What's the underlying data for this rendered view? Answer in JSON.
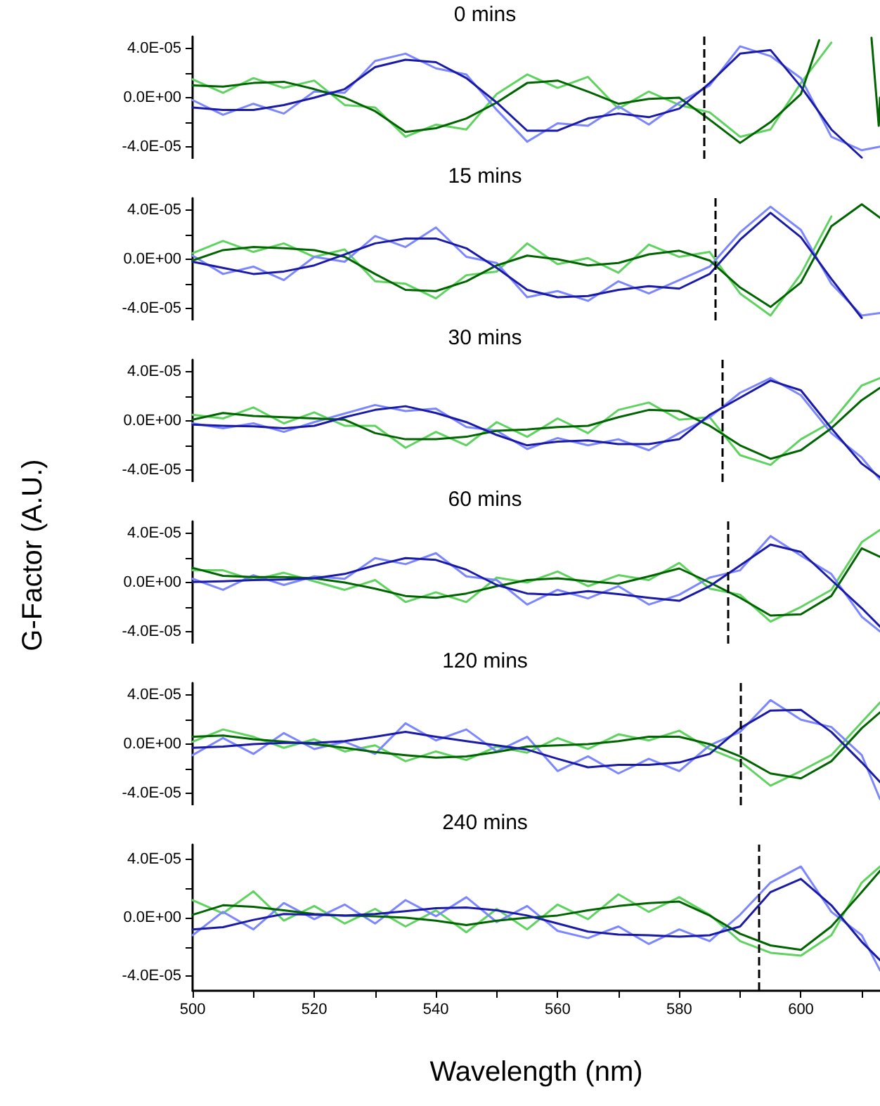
{
  "chart_data": [
    {
      "type": "line",
      "title": "0 mins",
      "tick_labels": "y",
      "xlim": [
        500,
        613
      ],
      "ylim": [
        -5e-05,
        5e-05
      ],
      "yticks": [
        {
          "value": -4e-05,
          "label": "-4.0E-05"
        },
        {
          "value": -2e-05,
          "label": null
        },
        {
          "value": 0,
          "label": "0.0E+00"
        },
        {
          "value": 2e-05,
          "label": null
        },
        {
          "value": 4e-05,
          "label": "4.0E-05"
        }
      ],
      "x": [
        500,
        505,
        510,
        515,
        520,
        525,
        530,
        535,
        540,
        545,
        550,
        555,
        560,
        565,
        570,
        575,
        580,
        585,
        590,
        595,
        600,
        605,
        610,
        613
      ],
      "ref_lines": [
        {
          "axis": "x",
          "value": 584,
          "color": "#000000",
          "line_style": "dashed"
        }
      ],
      "series": [
        {
          "color": "#5fd35f",
          "values": [
            1.5e-05,
            4e-06,
            1.6e-05,
            8e-06,
            1.4e-05,
            -6e-06,
            -8e-06,
            -3.2e-05,
            -2.2e-05,
            -2.6e-05,
            3e-06,
            1.9e-05,
            8e-06,
            1.7e-05,
            -9e-06,
            5e-06,
            -6e-06,
            -1.2e-05,
            -3.2e-05,
            -2.6e-05,
            1.2e-05,
            4.5e-05,
            null,
            null
          ]
        },
        {
          "color": "#7b86ff",
          "values": [
            -2e-06,
            -1.4e-05,
            -5e-06,
            -1.3e-05,
            5e-06,
            4e-06,
            3e-05,
            3.6e-05,
            2.4e-05,
            1.9e-05,
            -1e-05,
            -3.6e-05,
            -2.1e-05,
            -2.3e-05,
            -7e-06,
            -2.2e-05,
            -4e-06,
            1e-05,
            4.2e-05,
            3.4e-05,
            1.6e-05,
            -3.2e-05,
            -4.3e-05,
            -4e-05
          ]
        },
        {
          "color": "#006400",
          "x": [
            500,
            505,
            510,
            515,
            520,
            525,
            530,
            535,
            540,
            545,
            550,
            555,
            560,
            565,
            570,
            575,
            580,
            585,
            590,
            595,
            600,
            603,
            607,
            611.6,
            612.8,
            613
          ],
          "values": [
            1e-05,
            9e-06,
            1.2e-05,
            1.3e-05,
            7e-06,
            0,
            -1.1e-05,
            -2.8e-05,
            -2.5e-05,
            -1.7e-05,
            -4e-06,
            1.2e-05,
            1.4e-05,
            5e-06,
            -5e-06,
            -1e-06,
            0,
            -1.8e-05,
            -3.7e-05,
            -2e-05,
            3e-06,
            4.7e-05,
            null,
            4.9e-05,
            -2.3e-05,
            0
          ]
        },
        {
          "color": "#1a1aa8",
          "values": [
            -8e-06,
            -1e-05,
            -1e-05,
            -6e-06,
            0,
            7e-06,
            2.5e-05,
            3.1e-05,
            2.9e-05,
            1.6e-05,
            -4e-06,
            -2.7e-05,
            -2.7e-05,
            -1.7e-05,
            -1.3e-05,
            -1.6e-05,
            -9e-06,
            1.2e-05,
            3.6e-05,
            3.9e-05,
            9e-06,
            -2.6e-05,
            -4.9e-05,
            null
          ]
        }
      ]
    },
    {
      "type": "line",
      "title": "15 mins",
      "tick_labels": "y",
      "xlim": [
        500,
        613
      ],
      "ylim": [
        -5e-05,
        5e-05
      ],
      "yticks": [
        {
          "value": -4e-05,
          "label": "-4.0E-05"
        },
        {
          "value": -2e-05,
          "label": null
        },
        {
          "value": 0,
          "label": "0.0E+00"
        },
        {
          "value": 2e-05,
          "label": null
        },
        {
          "value": 4e-05,
          "label": "4.0E-05"
        }
      ],
      "x": [
        500,
        505,
        510,
        515,
        520,
        525,
        530,
        535,
        540,
        545,
        550,
        555,
        560,
        565,
        570,
        575,
        580,
        585,
        590,
        595,
        600,
        605,
        610,
        613
      ],
      "ref_lines": [
        {
          "axis": "x",
          "value": 586,
          "color": "#000000",
          "line_style": "dashed"
        }
      ],
      "series": [
        {
          "color": "#5fd35f",
          "values": [
            5e-06,
            1.5e-05,
            6e-06,
            1.3e-05,
            2e-06,
            8e-06,
            -1.8e-05,
            -2e-05,
            -3.2e-05,
            -1.3e-05,
            -1e-05,
            1.3e-05,
            -4e-06,
            1e-06,
            -1.1e-05,
            1.2e-05,
            2e-06,
            6e-06,
            -2.8e-05,
            -4.6e-05,
            -1.2e-05,
            3.5e-05,
            null,
            null
          ]
        },
        {
          "color": "#7b86ff",
          "values": [
            3e-06,
            -1.2e-05,
            -6e-06,
            -1.7e-05,
            2e-06,
            -2e-06,
            1.9e-05,
            1e-05,
            2.6e-05,
            2e-06,
            -3e-06,
            -3.1e-05,
            -2.6e-05,
            -3.4e-05,
            -1.8e-05,
            -2.8e-05,
            -1.7e-05,
            -6e-06,
            2.2e-05,
            4.3e-05,
            2.4e-05,
            -2e-05,
            -4.6e-05,
            -4.4e-05
          ]
        },
        {
          "color": "#006400",
          "values": [
            -1e-06,
            7.5e-06,
            1e-05,
            9e-06,
            7.5e-06,
            2e-06,
            -1.2e-05,
            -2.5e-05,
            -2.6e-05,
            -1.8e-05,
            -5e-06,
            3e-06,
            0,
            -5e-06,
            -3e-06,
            4e-06,
            7e-06,
            -1e-06,
            -2.3e-05,
            -3.9e-05,
            -1.9e-05,
            2.7e-05,
            4.5e-05,
            3.4e-05
          ]
        },
        {
          "color": "#1a1aa8",
          "values": [
            -2e-06,
            -7e-06,
            -1.2e-05,
            -1e-05,
            -5e-06,
            4e-06,
            1.3e-05,
            1.7e-05,
            1.7e-05,
            9e-06,
            -7e-06,
            -2.5e-05,
            -3.1e-05,
            -3e-05,
            -2.5e-05,
            -2.2e-05,
            -2.4e-05,
            -1.2e-05,
            1.6e-05,
            3.8e-05,
            1.8e-05,
            -1.6e-05,
            -4.8e-05,
            null
          ]
        }
      ]
    },
    {
      "type": "line",
      "title": "30 mins",
      "tick_labels": "y",
      "xlim": [
        500,
        613
      ],
      "ylim": [
        -5e-05,
        5e-05
      ],
      "yticks": [
        {
          "value": -4e-05,
          "label": "-4.0E-05"
        },
        {
          "value": -2e-05,
          "label": null
        },
        {
          "value": 0,
          "label": "0.0E+00"
        },
        {
          "value": 2e-05,
          "label": null
        },
        {
          "value": 4e-05,
          "label": "4.0E-05"
        }
      ],
      "x": [
        500,
        505,
        510,
        515,
        520,
        525,
        530,
        535,
        540,
        545,
        550,
        555,
        560,
        565,
        570,
        575,
        580,
        585,
        590,
        595,
        600,
        605,
        610,
        613
      ],
      "ref_lines": [
        {
          "axis": "x",
          "value": 587,
          "color": "#000000",
          "line_style": "dashed"
        }
      ],
      "series": [
        {
          "color": "#5fd35f",
          "values": [
            5e-06,
            2e-06,
            1.1e-05,
            -2e-06,
            7e-06,
            -4e-06,
            -4e-06,
            -2.2e-05,
            -9e-06,
            -2e-05,
            -1e-06,
            -1.3e-05,
            2e-06,
            -1e-05,
            9e-06,
            1.5e-05,
            1e-06,
            3e-06,
            -2.8e-05,
            -3.6e-05,
            -1.5e-05,
            -1e-06,
            2.9e-05,
            3.5e-05
          ]
        },
        {
          "color": "#7b86ff",
          "values": [
            -2e-06,
            -6e-06,
            -2e-06,
            -9e-06,
            -1e-06,
            6e-06,
            1.3e-05,
            8e-06,
            1e-05,
            -5e-06,
            -8e-06,
            -2.3e-05,
            -1.4e-05,
            -2e-05,
            -1.5e-05,
            -2.4e-05,
            -1e-05,
            3e-06,
            2.3e-05,
            3.5e-05,
            2.1e-05,
            -1e-05,
            -3e-05,
            -4.8e-05
          ]
        },
        {
          "color": "#006400",
          "values": [
            1e-06,
            6.5e-06,
            4e-06,
            3e-06,
            2e-06,
            1e-06,
            -1e-05,
            -1.5e-05,
            -1.5e-05,
            -1.3e-05,
            -8e-06,
            -7e-06,
            -5e-06,
            -4e-06,
            3e-06,
            9e-06,
            8e-06,
            -4e-06,
            -2e-05,
            -3.1e-05,
            -2.4e-05,
            -6e-06,
            1.7e-05,
            2.7e-05
          ]
        },
        {
          "color": "#1a1aa8",
          "values": [
            -3e-06,
            -4e-06,
            -4.5e-06,
            -6e-06,
            -4e-06,
            3e-06,
            9e-06,
            1.2e-05,
            6.5e-06,
            -1e-06,
            -1.15e-05,
            -2e-05,
            -1.7e-05,
            -1.6e-05,
            -1.9e-05,
            -1.9e-05,
            -1.5e-05,
            5e-06,
            1.9e-05,
            3.3e-05,
            2.5e-05,
            -6e-06,
            -3.5e-05,
            -4.6e-05
          ]
        }
      ]
    },
    {
      "type": "line",
      "title": "60 mins",
      "ylabel": "G-Factor (A.U.)",
      "tick_labels": "y",
      "xlim": [
        500,
        613
      ],
      "ylim": [
        -5e-05,
        5e-05
      ],
      "yticks": [
        {
          "value": -4e-05,
          "label": "-4.0E-05"
        },
        {
          "value": -2e-05,
          "label": null
        },
        {
          "value": 0,
          "label": "0.0E+00"
        },
        {
          "value": 2e-05,
          "label": null
        },
        {
          "value": 4e-05,
          "label": "4.0E-05"
        }
      ],
      "x": [
        500,
        505,
        510,
        515,
        520,
        525,
        530,
        535,
        540,
        545,
        550,
        555,
        560,
        565,
        570,
        575,
        580,
        585,
        590,
        595,
        600,
        605,
        610,
        613
      ],
      "ref_lines": [
        {
          "axis": "x",
          "value": 588,
          "color": "#000000",
          "line_style": "dashed"
        }
      ],
      "series": [
        {
          "color": "#5fd35f",
          "values": [
            1e-05,
            1e-05,
            2e-06,
            8e-06,
            1e-06,
            -6e-06,
            2e-06,
            -1.6e-05,
            -8e-06,
            -1.6e-05,
            4e-06,
            0,
            9e-06,
            -3e-06,
            6e-06,
            2e-06,
            1.6e-05,
            -5e-06,
            -1e-05,
            -3.2e-05,
            -2e-05,
            -6e-06,
            3.3e-05,
            4.3e-05
          ]
        },
        {
          "color": "#7b86ff",
          "values": [
            3e-06,
            -6e-06,
            6e-06,
            -2e-06,
            5e-06,
            3e-06,
            2e-05,
            1.5e-05,
            2.4e-05,
            5e-06,
            2e-06,
            -1.8e-05,
            -6e-06,
            -1.3e-05,
            -3e-06,
            -1.8e-05,
            -1e-05,
            4e-06,
            1e-05,
            3.8e-05,
            2.2e-05,
            7e-06,
            -2.8e-05,
            -4e-05
          ]
        },
        {
          "color": "#006400",
          "values": [
            1.2e-05,
            5.5e-06,
            4.5e-06,
            4.5e-06,
            3.5e-06,
            0,
            -5e-06,
            -1.1e-05,
            -1.25e-05,
            -9e-06,
            -3e-06,
            2e-06,
            3.5e-06,
            1e-06,
            -1e-06,
            5e-06,
            1.15e-05,
            0,
            -1.25e-05,
            -2.7e-05,
            -2.6e-05,
            -1.1e-05,
            2.8e-05,
            2.1e-05
          ]
        },
        {
          "color": "#1a1aa8",
          "values": [
            5e-07,
            1e-06,
            2e-06,
            2.5e-06,
            3.5e-06,
            7e-06,
            1.4e-05,
            2e-05,
            1.85e-05,
            1.05e-05,
            -2e-06,
            -9e-06,
            -1e-05,
            -7e-06,
            -9.5e-06,
            -1.25e-05,
            -1.5e-05,
            -3e-06,
            1.4e-05,
            3.1e-05,
            2.5e-05,
            2e-06,
            -2.1e-05,
            -3.6e-05
          ]
        }
      ]
    },
    {
      "type": "line",
      "title": "120 mins",
      "tick_labels": "y",
      "xlim": [
        500,
        613
      ],
      "ylim": [
        -5e-05,
        5e-05
      ],
      "yticks": [
        {
          "value": -4e-05,
          "label": "-4.0E-05"
        },
        {
          "value": -2e-05,
          "label": null
        },
        {
          "value": 0,
          "label": "0.0E+00"
        },
        {
          "value": 2e-05,
          "label": null
        },
        {
          "value": 4e-05,
          "label": "4.0E-05"
        }
      ],
      "x": [
        500,
        505,
        510,
        515,
        520,
        525,
        530,
        535,
        540,
        545,
        550,
        555,
        560,
        565,
        570,
        575,
        580,
        585,
        590,
        595,
        600,
        605,
        610,
        613
      ],
      "ref_lines": [
        {
          "axis": "x",
          "value": 590,
          "color": "#000000",
          "line_style": "dashed"
        }
      ],
      "series": [
        {
          "color": "#5fd35f",
          "values": [
            2e-06,
            1.2e-05,
            6e-06,
            -3e-06,
            4e-06,
            -6e-06,
            -1e-06,
            -1.4e-05,
            -6e-06,
            -1.3e-05,
            -2e-06,
            -7e-06,
            5e-06,
            -4e-06,
            8e-06,
            3e-06,
            1.1e-05,
            -4e-06,
            -1.4e-05,
            -3.4e-05,
            -2.2e-05,
            -9e-06,
            1.8e-05,
            3.4e-05
          ]
        },
        {
          "color": "#7b86ff",
          "values": [
            -9e-06,
            5e-06,
            -8e-06,
            9e-06,
            -4e-06,
            2e-06,
            -8e-06,
            1.7e-05,
            3e-06,
            1.2e-05,
            -6e-06,
            6e-06,
            -2.2e-05,
            -1e-05,
            -2.4e-05,
            -1.2e-05,
            -2.2e-05,
            -1e-06,
            1e-05,
            3.6e-05,
            2e-05,
            1.4e-05,
            -9e-06,
            -4.5e-05
          ]
        },
        {
          "color": "#006400",
          "values": [
            6e-06,
            7e-06,
            4e-06,
            2e-06,
            0,
            -3e-06,
            -6.5e-06,
            -9e-06,
            -1.1e-05,
            -1e-05,
            -6.5e-06,
            -2e-06,
            -1e-06,
            0,
            2.5e-06,
            6e-06,
            6e-06,
            0,
            -1e-05,
            -2.4e-05,
            -2.8e-05,
            -1.4e-05,
            1.3e-05,
            2.6e-05
          ]
        },
        {
          "color": "#1a1aa8",
          "values": [
            -3e-06,
            -2e-06,
            0,
            1e-06,
            1e-06,
            2.5e-06,
            6e-06,
            1e-05,
            6e-06,
            2.5e-06,
            -1e-06,
            -4.5e-06,
            -1.2e-05,
            -1.9e-05,
            -1.7e-05,
            -1.7e-05,
            -1.5e-05,
            -8e-06,
            1.3e-05,
            2.75e-05,
            2.8e-05,
            1e-05,
            -1.5e-05,
            -3.1e-05
          ]
        }
      ]
    },
    {
      "type": "line",
      "title": "240 mins",
      "xlabel": "Wavelength (nm)",
      "xlim": [
        500,
        613
      ],
      "ylim": [
        -5e-05,
        5e-05
      ],
      "xticks": [
        500,
        {
          "value": 510,
          "label": null
        },
        520,
        {
          "value": 530,
          "label": null
        },
        540,
        {
          "value": 550,
          "label": null
        },
        560,
        {
          "value": 570,
          "label": null
        },
        580,
        {
          "value": 590,
          "label": null
        },
        600,
        {
          "value": 610,
          "label": null
        }
      ],
      "yticks": [
        {
          "value": -4e-05,
          "label": "-4.0E-05"
        },
        {
          "value": -2e-05,
          "label": null
        },
        {
          "value": 0,
          "label": "0.0E+00"
        },
        {
          "value": 2e-05,
          "label": null
        },
        {
          "value": 4e-05,
          "label": "4.0E-05"
        }
      ],
      "x": [
        500,
        505,
        510,
        515,
        520,
        525,
        530,
        535,
        540,
        545,
        550,
        555,
        560,
        565,
        570,
        575,
        580,
        585,
        590,
        595,
        600,
        605,
        610,
        613
      ],
      "ref_lines": [
        {
          "axis": "x",
          "value": 593,
          "color": "#000000",
          "line_style": "dashed"
        }
      ],
      "series": [
        {
          "color": "#5fd35f",
          "values": [
            1.2e-05,
            3e-06,
            1.8e-05,
            -2e-06,
            8e-06,
            -4e-06,
            6e-06,
            -6e-06,
            5e-06,
            -1e-05,
            6e-06,
            -8e-06,
            9e-06,
            -1e-06,
            1.6e-05,
            4e-06,
            1.4e-05,
            2e-06,
            -1.6e-05,
            -2.4e-05,
            -2.6e-05,
            -1.2e-05,
            2.4e-05,
            3.5e-05
          ]
        },
        {
          "color": "#7b86ff",
          "values": [
            -1.2e-05,
            4e-06,
            -8e-06,
            1e-05,
            -1e-06,
            9e-06,
            -4e-06,
            1.2e-05,
            1e-06,
            1.4e-05,
            -3e-06,
            8e-06,
            -9e-06,
            -1.4e-05,
            -6e-06,
            -1.8e-05,
            -8e-06,
            -1.6e-05,
            2e-06,
            2.4e-05,
            3.5e-05,
            4e-06,
            -1.2e-05,
            -3.6e-05
          ]
        },
        {
          "color": "#006400",
          "values": [
            2e-06,
            8.5e-06,
            7.5e-06,
            5e-06,
            2.5e-06,
            1.5e-06,
            1e-06,
            0,
            -2e-06,
            -5e-06,
            -2e-06,
            0,
            1.5e-06,
            5e-06,
            8e-06,
            1e-05,
            1.1e-05,
            1.5e-06,
            -1.1e-05,
            -1.9e-05,
            -2.2e-05,
            -6e-06,
            1.75e-05,
            3.2e-05
          ]
        },
        {
          "color": "#1a1aa8",
          "values": [
            -8e-06,
            -6.5e-06,
            -1.5e-06,
            2.5e-06,
            2e-06,
            1.5e-06,
            2.5e-06,
            4.5e-06,
            6.5e-06,
            7e-06,
            5e-06,
            1.5e-06,
            -4e-06,
            -9.5e-06,
            -1.15e-05,
            -1.2e-05,
            -1.3e-05,
            -1.2e-05,
            -6e-06,
            1.75e-05,
            2.65e-05,
            8.5e-06,
            -1.65e-05,
            -2.9e-05
          ]
        }
      ]
    }
  ]
}
